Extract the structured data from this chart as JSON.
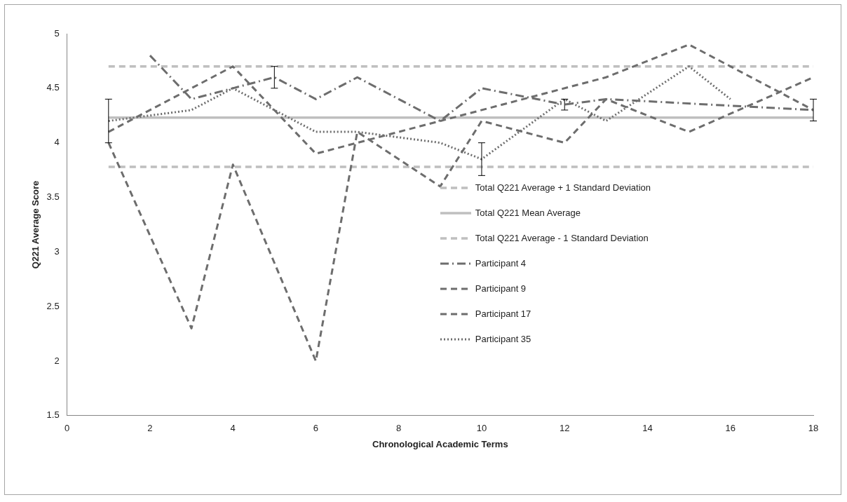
{
  "chart_data": {
    "type": "line",
    "xlabel": "Chronological Academic Terms",
    "ylabel": "Q221 Average Score",
    "xlim": [
      0,
      18
    ],
    "xticks": [
      0,
      2,
      4,
      6,
      8,
      10,
      12,
      14,
      16,
      18
    ],
    "ylim": [
      1.5,
      5
    ],
    "yticks": [
      1.5,
      2,
      2.5,
      3,
      3.5,
      4,
      4.5,
      5
    ],
    "grid": false,
    "legend": "right",
    "marker": "none",
    "ref_lines": [
      {
        "axis": "y",
        "value": 4.7,
        "label": "Total Q221 Average + 1 Standard Deviation",
        "color": "#bfbfbf",
        "line_style": "dashed"
      },
      {
        "axis": "y",
        "value": 4.23,
        "label": "Total Q221 Mean Average",
        "color": "#bfbfbf",
        "line_style": "solid"
      },
      {
        "axis": "y",
        "value": 3.78,
        "label": "Total Q221 Average - 1 Standard Deviation",
        "color": "#bfbfbf",
        "line_style": "dashed"
      }
    ],
    "series": [
      {
        "name": "Participant 4",
        "color": "#6d6d6d",
        "line_style": "dashdot",
        "x": [
          2,
          3,
          4,
          5,
          6,
          7,
          9,
          10,
          12,
          13,
          18
        ],
        "values": [
          4.8,
          4.4,
          4.5,
          4.6,
          4.4,
          4.6,
          4.2,
          4.5,
          4.35,
          4.4,
          4.3
        ],
        "errors": [
          null,
          null,
          null,
          [
            4.5,
            4.7
          ],
          null,
          null,
          null,
          null,
          [
            4.3,
            4.4
          ],
          null,
          [
            4.2,
            4.4
          ]
        ]
      },
      {
        "name": "Participant 9",
        "color": "#6d6d6d",
        "line_style": "dashed",
        "x": [
          1,
          4,
          6,
          13,
          15,
          18
        ],
        "values": [
          4.1,
          4.7,
          3.9,
          4.6,
          4.9,
          4.3
        ]
      },
      {
        "name": "Participant 17",
        "color": "#6d6d6d",
        "line_style": "dashed",
        "x": [
          1,
          3,
          4,
          6,
          7,
          9,
          10,
          12,
          13,
          15,
          18
        ],
        "values": [
          4.0,
          2.3,
          3.8,
          2.0,
          4.1,
          3.6,
          4.2,
          4.0,
          4.4,
          4.1,
          4.6
        ]
      },
      {
        "name": "Participant 35",
        "color": "#6d6d6d",
        "line_style": "dotted",
        "x": [
          1,
          3,
          4,
          6,
          7,
          9,
          10,
          12,
          13,
          15,
          16
        ],
        "values": [
          4.2,
          4.3,
          4.5,
          4.1,
          4.1,
          4.0,
          3.85,
          4.4,
          4.2,
          4.7,
          4.4
        ],
        "errors": [
          [
            4.0,
            4.4
          ],
          null,
          null,
          null,
          null,
          null,
          [
            3.7,
            4.0
          ],
          null,
          null,
          null,
          null
        ]
      }
    ]
  }
}
